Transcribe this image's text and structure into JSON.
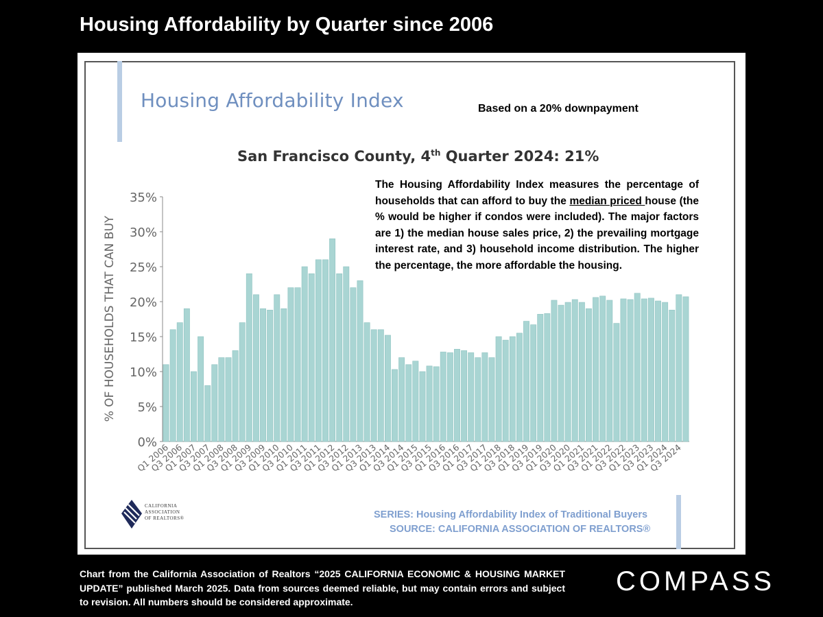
{
  "slide_title": "Housing Affordability by Quarter since 2006",
  "index_title": "Housing Affordability Index",
  "downpayment_note": "Based on a 20% downpayment",
  "headline": {
    "prefix": "San Francisco County, 4",
    "sup": "th",
    "suffix": " Quarter 2024: 21%"
  },
  "description": {
    "before": "The Housing Affordability Index measures the percentage of households that can afford to buy the ",
    "underlined": "median priced ",
    "after": "house (the % would be higher if condos were included). The major factors are 1) the median house sales price, 2) the prevailing mortgage interest rate, and 3) household income distribution. The higher the percentage, the more affordable the housing."
  },
  "logo_text": [
    "CALIFORNIA",
    "ASSOCIATION",
    "OF REALTORS®"
  ],
  "series_line": "SERIES: Housing Affordability Index of Traditional Buyers",
  "source_line": "SOURCE: CALIFORNIA ASSOCIATION OF REALTORS®",
  "footnote": "Chart from the California Association of Realtors “2025 CALIFORNIA ECONOMIC & HOUSING MARKET UPDATE” published March 2025. Data from sources deemed reliable, but may contain errors and subject to revision. All numbers should be considered approximate.",
  "brand": "COMPASS",
  "colors": {
    "bar": "#a9d5d3",
    "bar_edge": "#8fc3c1",
    "accent": "#b9cde4",
    "title_blue": "#6f8fbf"
  },
  "chart_data": {
    "type": "bar",
    "ylabel": "% OF HOUSEHOLDS THAT CAN BUY",
    "ylim": [
      0,
      35
    ],
    "yticks": [
      "0%",
      "5%",
      "10%",
      "15%",
      "20%",
      "25%",
      "30%",
      "35%"
    ],
    "grid": false,
    "categories": [
      "Q1 2006",
      "Q2 2006",
      "Q3 2006",
      "Q4 2006",
      "Q1 2007",
      "Q2 2007",
      "Q3 2007",
      "Q4 2007",
      "Q1 2008",
      "Q2 2008",
      "Q3 2008",
      "Q4 2008",
      "Q1 2009",
      "Q2 2009",
      "Q3 2009",
      "Q4 2009",
      "Q1 2010",
      "Q2 2010",
      "Q3 2010",
      "Q4 2010",
      "Q1 2011",
      "Q2 2011",
      "Q3 2011",
      "Q4 2011",
      "Q1 2012",
      "Q2 2012",
      "Q3 2012",
      "Q4 2012",
      "Q1 2013",
      "Q2 2013",
      "Q3 2013",
      "Q4 2013",
      "Q1 2014",
      "Q2 2014",
      "Q3 2014",
      "Q4 2014",
      "Q1 2015",
      "Q2 2015",
      "Q3 2015",
      "Q4 2015",
      "Q1 2016",
      "Q2 2016",
      "Q3 2016",
      "Q4 2016",
      "Q1 2017",
      "Q2 2017",
      "Q3 2017",
      "Q4 2017",
      "Q1 2018",
      "Q2 2018",
      "Q3 2018",
      "Q4 2018",
      "Q1 2019",
      "Q2 2019",
      "Q3 2019",
      "Q4 2019",
      "Q1 2020",
      "Q2 2020",
      "Q3 2020",
      "Q4 2020",
      "Q1 2021",
      "Q2 2021",
      "Q3 2021",
      "Q4 2021",
      "Q1 2022",
      "Q2 2022",
      "Q3 2022",
      "Q4 2022",
      "Q1 2023",
      "Q2 2023",
      "Q3 2023",
      "Q4 2023",
      "Q1 2024",
      "Q2 2024",
      "Q3 2024",
      "Q4 2024"
    ],
    "tick_labels": [
      "Q1 2006",
      "Q3 2006",
      "Q1 2007",
      "Q3 2007",
      "Q1 2008",
      "Q3 2008",
      "Q1 2009",
      "Q3 2009",
      "Q1 2010",
      "Q3 2010",
      "Q1 2011",
      "Q3 2011",
      "Q1 2012",
      "Q3 2012",
      "Q1 2013",
      "Q3 2013",
      "Q1 2014",
      "Q3 2014",
      "Q1 2015",
      "Q3 2015",
      "Q1 2016",
      "Q3 2016",
      "Q1 2017",
      "Q3 2017",
      "Q1 2018",
      "Q3 2018",
      "Q1 2019",
      "Q3 2019",
      "Q1 2020",
      "Q3 2020",
      "Q1 2021",
      "Q3 2021",
      "Q1 2022",
      "Q3 2022",
      "Q1 2023",
      "Q3 2023",
      "Q1 2024",
      "Q3 2024"
    ],
    "values": [
      11,
      16,
      17,
      19,
      10,
      15,
      8,
      11,
      12,
      12,
      13,
      17,
      24,
      21,
      19,
      18.8,
      21,
      19,
      22,
      22,
      25,
      24,
      26,
      26,
      29,
      24,
      25,
      22,
      23,
      17,
      16,
      16,
      15.2,
      10.3,
      12,
      11,
      11.5,
      10,
      10.8,
      10.7,
      12.8,
      12.7,
      13.2,
      13,
      12.7,
      12,
      12.7,
      12,
      15,
      14.5,
      15,
      15.5,
      17.2,
      16.7,
      18.2,
      18.3,
      20.2,
      19.5,
      19.9,
      20.3,
      19.9,
      19,
      20.6,
      20.8,
      20.2,
      16.9,
      20.4,
      20.3,
      21.2,
      20.4,
      20.5,
      20.1,
      19.9,
      18.8,
      21,
      20.7
    ]
  }
}
